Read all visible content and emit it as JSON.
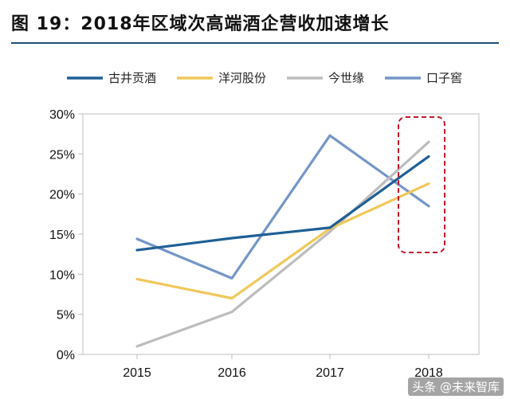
{
  "title": "图 19：2018年区域次高端酒企营收加速增长",
  "watermark": "头条 @未来智库",
  "chart_data": {
    "type": "line",
    "x": [
      "2015",
      "2016",
      "2017",
      "2018"
    ],
    "ylim": [
      0,
      30
    ],
    "yticks": [
      "0%",
      "5%",
      "10%",
      "15%",
      "20%",
      "25%",
      "30%"
    ],
    "ytick_values": [
      0,
      5,
      10,
      15,
      20,
      25,
      30
    ],
    "grid": false,
    "legend_position": "top",
    "series": [
      {
        "name": "古井贡酒",
        "color": "#1f5f96",
        "values": [
          13.0,
          14.5,
          15.8,
          24.7
        ]
      },
      {
        "name": "洋河股份",
        "color": "#f0c85a",
        "values": [
          9.4,
          7.0,
          15.7,
          21.3
        ]
      },
      {
        "name": "今世缘",
        "color": "#bdbdbd",
        "values": [
          1.0,
          5.3,
          15.3,
          26.5
        ]
      },
      {
        "name": "口子窖",
        "color": "#7596c8",
        "values": [
          14.4,
          9.5,
          27.3,
          18.5
        ]
      }
    ],
    "annotation": {
      "type": "dashed-box",
      "target_x": "2018",
      "color": "#c0182b"
    }
  }
}
